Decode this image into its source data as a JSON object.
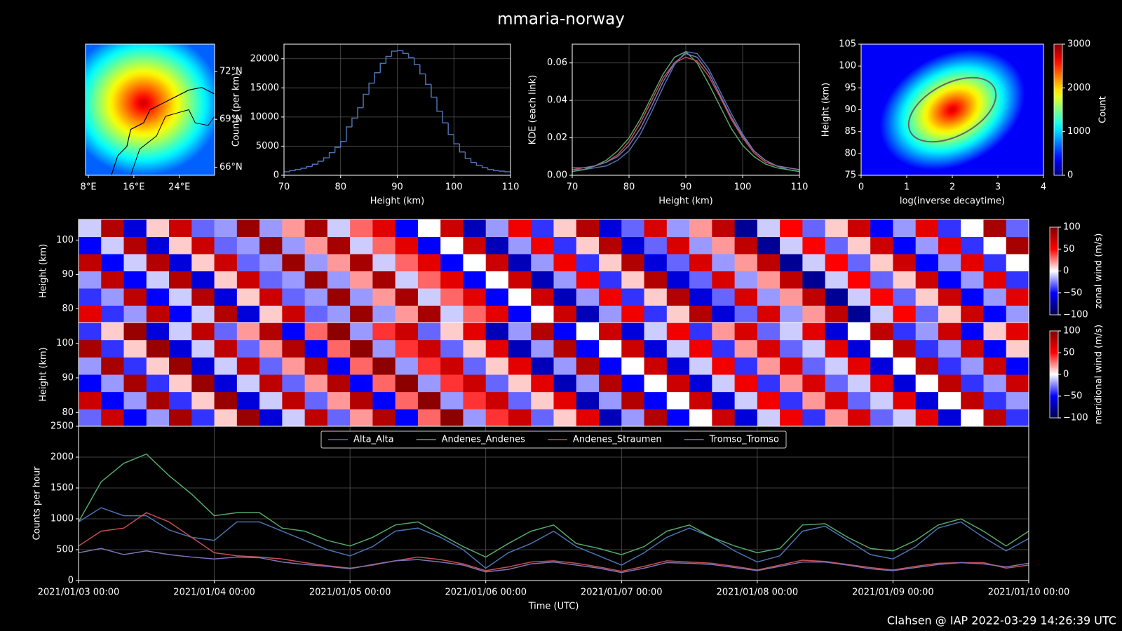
{
  "title": "mmaria-norway",
  "footer": "Clahsen @ IAP 2022-03-29 14:26:39 UTC",
  "chart_data": [
    {
      "type": "map",
      "cmap": "jet",
      "xlim": [
        7.5,
        30.2
      ],
      "ylim": [
        65.5,
        73.7
      ],
      "xticks": [
        {
          "value": 8,
          "label": "8°E"
        },
        {
          "value": 16,
          "label": "16°E"
        },
        {
          "value": 24,
          "label": "24°E"
        }
      ],
      "yticks": [
        {
          "value": 72,
          "label": "72°N"
        },
        {
          "value": 69,
          "label": "69°N"
        },
        {
          "value": 66,
          "label": "66°N"
        }
      ],
      "ytick_side": "right"
    },
    {
      "type": "histogram",
      "color": "#4c72b0",
      "grid": true,
      "xlabel": "Height (km)",
      "ylabel": "Counts (per km)",
      "bins": [
        70,
        71,
        72,
        73,
        74,
        75,
        76,
        77,
        78,
        79,
        80,
        81,
        82,
        83,
        84,
        85,
        86,
        87,
        88,
        89,
        90,
        91,
        92,
        93,
        94,
        95,
        96,
        97,
        98,
        99,
        100,
        101,
        102,
        103,
        104,
        105,
        106,
        107,
        108,
        109,
        110
      ],
      "values": [
        600,
        800,
        1000,
        1200,
        1500,
        1900,
        2400,
        3000,
        3900,
        4800,
        5800,
        8300,
        9800,
        11600,
        13900,
        15800,
        17600,
        19200,
        20400,
        21300,
        21400,
        20900,
        20200,
        19000,
        17400,
        15600,
        13400,
        11000,
        9000,
        7000,
        5400,
        4000,
        2900,
        2200,
        1700,
        1300,
        1000,
        800,
        700,
        600
      ],
      "xlim": [
        70,
        110
      ],
      "xticks": [
        70,
        80,
        90,
        100,
        110
      ],
      "ylim": [
        0,
        22500
      ],
      "yticks": [
        0,
        5000,
        10000,
        15000,
        20000
      ]
    },
    {
      "type": "line",
      "grid": true,
      "xlabel": "Height (km)",
      "ylabel": "KDE (each link)",
      "x": [
        70,
        72,
        74,
        76,
        78,
        80,
        82,
        84,
        86,
        88,
        90,
        92,
        94,
        96,
        98,
        100,
        102,
        104,
        106,
        108,
        110
      ],
      "series": [
        {
          "color": "#4c72b0",
          "values": [
            0.003,
            0.003,
            0.004,
            0.005,
            0.008,
            0.013,
            0.022,
            0.034,
            0.047,
            0.059,
            0.066,
            0.065,
            0.057,
            0.045,
            0.033,
            0.022,
            0.013,
            0.008,
            0.005,
            0.003,
            0.002
          ]
        },
        {
          "color": "#55a868",
          "values": [
            0.002,
            0.003,
            0.005,
            0.008,
            0.013,
            0.02,
            0.03,
            0.042,
            0.054,
            0.063,
            0.066,
            0.06,
            0.049,
            0.037,
            0.025,
            0.016,
            0.01,
            0.006,
            0.004,
            0.003,
            0.002
          ]
        },
        {
          "color": "#c44e52",
          "values": [
            0.003,
            0.004,
            0.005,
            0.007,
            0.011,
            0.018,
            0.028,
            0.04,
            0.052,
            0.06,
            0.063,
            0.061,
            0.053,
            0.042,
            0.03,
            0.02,
            0.012,
            0.007,
            0.005,
            0.004,
            0.003
          ]
        },
        {
          "color": "#8172b2",
          "values": [
            0.004,
            0.004,
            0.005,
            0.007,
            0.01,
            0.016,
            0.025,
            0.037,
            0.05,
            0.06,
            0.065,
            0.063,
            0.055,
            0.043,
            0.031,
            0.021,
            0.013,
            0.008,
            0.005,
            0.004,
            0.003
          ]
        }
      ],
      "xlim": [
        70,
        110
      ],
      "xticks": [
        70,
        80,
        90,
        100,
        110
      ],
      "ylim": [
        0,
        0.07
      ],
      "yticks": [
        {
          "value": 0,
          "label": "0.00"
        },
        0.02,
        0.04,
        0.06
      ]
    },
    {
      "type": "hist2d",
      "cmap": "jet",
      "xlabel": "log(inverse decaytime)",
      "ylabel": "Height (km)",
      "xlim": [
        0,
        4
      ],
      "xticks": [
        0,
        1,
        2,
        3,
        4
      ],
      "ylim": [
        75,
        105
      ],
      "yticks": [
        75,
        80,
        85,
        90,
        95,
        100,
        105
      ],
      "colorbar": {
        "label": "Count",
        "clim": [
          0,
          3000
        ],
        "ticks": [
          0,
          1000,
          2000,
          3000
        ]
      }
    },
    {
      "type": "heatmap",
      "cmap": "seismic",
      "ylabel": "Height (km)",
      "xlim": [
        "2021/01/03 00:00",
        "2021/01/10 00:00"
      ],
      "ylim": [
        76,
        106
      ],
      "yticks": [
        80,
        90,
        100
      ],
      "y": [
        78.5,
        83.5,
        88.5,
        93.5,
        98.5,
        103.5
      ],
      "z": [
        [
          60,
          -40,
          -20,
          75,
          -50,
          -10,
          80,
          -60,
          10,
          70,
          -30,
          -20,
          90,
          -20,
          20,
          85,
          -10,
          30,
          60,
          -50,
          0,
          70,
          -70,
          -20,
          55,
          -40,
          10,
          80,
          -60,
          -30,
          65,
          -20,
          20,
          75,
          -80,
          -10,
          50,
          -30,
          10,
          70,
          -50,
          -20
        ],
        [
          -40,
          -20,
          75,
          -50,
          -10,
          80,
          -60,
          10,
          70,
          -30,
          -20,
          90,
          -20,
          20,
          85,
          -10,
          30,
          60,
          -50,
          0,
          70,
          -70,
          -20,
          55,
          -40,
          10,
          80,
          -60,
          -30,
          65,
          -20,
          20,
          75,
          -80,
          -10,
          50,
          -30,
          10,
          70,
          -50,
          -20,
          60
        ],
        [
          -20,
          75,
          -50,
          -10,
          80,
          -60,
          10,
          70,
          -30,
          -20,
          90,
          -20,
          20,
          85,
          -10,
          30,
          60,
          -50,
          0,
          70,
          -70,
          -20,
          55,
          -40,
          10,
          80,
          -60,
          -30,
          65,
          -20,
          20,
          75,
          -80,
          -10,
          50,
          -30,
          10,
          70,
          -50,
          -20,
          60,
          -40
        ],
        [
          75,
          -50,
          -10,
          80,
          -60,
          10,
          70,
          -30,
          -20,
          90,
          -20,
          20,
          85,
          -10,
          30,
          60,
          -50,
          0,
          70,
          -70,
          -20,
          55,
          -40,
          10,
          80,
          -60,
          -30,
          65,
          -20,
          20,
          75,
          -80,
          -10,
          50,
          -30,
          10,
          70,
          -50,
          -20,
          60,
          -40,
          0
        ],
        [
          -50,
          -10,
          80,
          -60,
          10,
          70,
          -30,
          -20,
          90,
          -20,
          20,
          85,
          -10,
          30,
          60,
          -50,
          0,
          70,
          -70,
          -20,
          55,
          -40,
          10,
          80,
          -60,
          -30,
          65,
          -20,
          20,
          75,
          -80,
          -10,
          50,
          -30,
          10,
          70,
          -50,
          -20,
          60,
          -40,
          0,
          85
        ],
        [
          -10,
          80,
          -60,
          10,
          70,
          -30,
          -20,
          90,
          -20,
          20,
          85,
          -10,
          30,
          60,
          -50,
          0,
          70,
          -70,
          -20,
          55,
          -40,
          10,
          80,
          -60,
          -30,
          65,
          -20,
          20,
          75,
          -80,
          -10,
          50,
          -30,
          10,
          70,
          -50,
          -20,
          60,
          -40,
          0,
          85,
          -30
        ]
      ],
      "colorbar": {
        "label": "zonal wind (m/s)",
        "clim": [
          -100,
          100
        ],
        "ticks": [
          {
            "value": -100,
            "label": "−100"
          },
          {
            "value": -50,
            "label": "−50"
          },
          0,
          50,
          100
        ]
      }
    },
    {
      "type": "heatmap",
      "cmap": "seismic",
      "ylabel": "Height (km)",
      "xlim": [
        "2021/01/03 00:00",
        "2021/01/10 00:00"
      ],
      "ylim": [
        76,
        106
      ],
      "yticks": [
        80,
        90,
        100
      ],
      "y": [
        78.5,
        83.5,
        88.5,
        93.5,
        98.5,
        103.5
      ],
      "z": [
        [
          -30,
          70,
          -50,
          -20,
          85,
          -40,
          10,
          90,
          -60,
          -10,
          75,
          -30,
          20,
          80,
          -50,
          30,
          95,
          -20,
          40,
          70,
          -30,
          10,
          60,
          -70,
          -20,
          80,
          -50,
          0,
          70,
          -60,
          -10,
          55,
          -40,
          20,
          65,
          -30,
          -10,
          60,
          -60,
          0,
          75,
          -40
        ],
        [
          70,
          -50,
          -20,
          85,
          -40,
          10,
          90,
          -60,
          -10,
          75,
          -30,
          20,
          80,
          -50,
          30,
          95,
          -20,
          40,
          70,
          -30,
          10,
          60,
          -70,
          -20,
          80,
          -50,
          0,
          70,
          -60,
          -10,
          55,
          -40,
          20,
          65,
          -30,
          -10,
          60,
          -60,
          0,
          75,
          -40,
          -20
        ],
        [
          -50,
          -20,
          85,
          -40,
          10,
          90,
          -60,
          -10,
          75,
          -30,
          20,
          80,
          -50,
          30,
          95,
          -20,
          40,
          70,
          -30,
          10,
          60,
          -70,
          -20,
          80,
          -50,
          0,
          70,
          -60,
          -10,
          55,
          -40,
          20,
          65,
          -30,
          -10,
          60,
          -60,
          0,
          75,
          -40,
          -20,
          70
        ],
        [
          -20,
          85,
          -40,
          10,
          90,
          -60,
          -10,
          75,
          -30,
          20,
          80,
          -50,
          30,
          95,
          -20,
          40,
          70,
          -30,
          10,
          60,
          -70,
          -20,
          80,
          -50,
          0,
          70,
          -60,
          -10,
          55,
          -40,
          20,
          65,
          -30,
          -10,
          60,
          -60,
          0,
          75,
          -40,
          -20,
          70,
          -50
        ],
        [
          85,
          -40,
          10,
          90,
          -60,
          -10,
          75,
          -30,
          20,
          80,
          -50,
          30,
          95,
          -20,
          40,
          70,
          -30,
          10,
          60,
          -70,
          -20,
          80,
          -50,
          0,
          70,
          -60,
          -10,
          55,
          -40,
          20,
          65,
          -30,
          -10,
          60,
          -60,
          0,
          75,
          -40,
          -20,
          70,
          -50,
          10
        ],
        [
          -40,
          10,
          90,
          -60,
          -10,
          75,
          -30,
          20,
          80,
          -50,
          30,
          95,
          -20,
          40,
          70,
          -30,
          10,
          60,
          -70,
          -20,
          80,
          -50,
          0,
          70,
          -60,
          -10,
          55,
          -40,
          20,
          65,
          -30,
          -10,
          60,
          -60,
          0,
          75,
          -40,
          -20,
          70,
          -50,
          10,
          60
        ]
      ],
      "colorbar": {
        "label": "meridional wind (m/s)",
        "clim": [
          -100,
          100
        ],
        "ticks": [
          {
            "value": -100,
            "label": "−100"
          },
          {
            "value": -50,
            "label": "−50"
          },
          0,
          50,
          100
        ]
      }
    },
    {
      "type": "line",
      "grid": true,
      "legend": "upper center",
      "xlabel": "Time (UTC)",
      "ylabel": "Counts per hour",
      "x": [
        "2021/01/03 00:00",
        "2021/01/03 04:00",
        "2021/01/03 08:00",
        "2021/01/03 12:00",
        "2021/01/03 16:00",
        "2021/01/03 20:00",
        "2021/01/04 00:00",
        "2021/01/04 04:00",
        "2021/01/04 08:00",
        "2021/01/04 12:00",
        "2021/01/04 16:00",
        "2021/01/04 20:00",
        "2021/01/05 00:00",
        "2021/01/05 04:00",
        "2021/01/05 08:00",
        "2021/01/05 12:00",
        "2021/01/05 16:00",
        "2021/01/05 20:00",
        "2021/01/06 00:00",
        "2021/01/06 04:00",
        "2021/01/06 08:00",
        "2021/01/06 12:00",
        "2021/01/06 16:00",
        "2021/01/06 20:00",
        "2021/01/07 00:00",
        "2021/01/07 04:00",
        "2021/01/07 08:00",
        "2021/01/07 12:00",
        "2021/01/07 16:00",
        "2021/01/07 20:00",
        "2021/01/08 00:00",
        "2021/01/08 04:00",
        "2021/01/08 08:00",
        "2021/01/08 12:00",
        "2021/01/08 16:00",
        "2021/01/08 20:00",
        "2021/01/09 00:00",
        "2021/01/09 04:00",
        "2021/01/09 08:00",
        "2021/01/09 12:00",
        "2021/01/09 16:00",
        "2021/01/09 20:00",
        "2021/01/10 00:00"
      ],
      "series": [
        {
          "name": "Alta_Alta",
          "color": "#4c72b0",
          "values": [
            950,
            1180,
            1050,
            1050,
            820,
            700,
            650,
            950,
            950,
            800,
            650,
            500,
            400,
            550,
            800,
            850,
            700,
            500,
            200,
            450,
            600,
            800,
            550,
            400,
            250,
            450,
            700,
            850,
            700,
            480,
            300,
            400,
            800,
            880,
            650,
            420,
            350,
            550,
            850,
            950,
            700,
            480,
            680
          ]
        },
        {
          "name": "Andenes_Andenes",
          "color": "#55a868",
          "values": [
            950,
            1600,
            1900,
            2050,
            1700,
            1400,
            1050,
            1100,
            1100,
            850,
            800,
            650,
            560,
            700,
            900,
            950,
            750,
            550,
            380,
            600,
            800,
            900,
            600,
            520,
            420,
            550,
            800,
            900,
            700,
            560,
            450,
            520,
            900,
            920,
            700,
            520,
            480,
            650,
            900,
            1000,
            800,
            560,
            800
          ]
        },
        {
          "name": "Andenes_Straumen",
          "color": "#c44e52",
          "values": [
            560,
            800,
            850,
            1100,
            950,
            700,
            450,
            400,
            380,
            350,
            290,
            240,
            200,
            250,
            320,
            380,
            340,
            270,
            160,
            220,
            300,
            320,
            280,
            220,
            150,
            230,
            320,
            300,
            280,
            230,
            170,
            250,
            330,
            310,
            260,
            210,
            170,
            230,
            280,
            290,
            290,
            200,
            250
          ]
        },
        {
          "name": "Tromso_Tromso",
          "color": "#8172b2",
          "values": [
            450,
            520,
            420,
            480,
            420,
            380,
            350,
            380,
            370,
            300,
            260,
            230,
            190,
            260,
            320,
            340,
            300,
            250,
            140,
            180,
            270,
            300,
            250,
            200,
            130,
            200,
            290,
            280,
            260,
            210,
            160,
            230,
            300,
            300,
            250,
            190,
            160,
            210,
            260,
            290,
            270,
            220,
            280
          ]
        }
      ],
      "xlim": [
        "2021/01/03 00:00",
        "2021/01/10 00:00"
      ],
      "xticks": [
        "2021/01/03 00:00",
        "2021/01/04 00:00",
        "2021/01/05 00:00",
        "2021/01/06 00:00",
        "2021/01/07 00:00",
        "2021/01/08 00:00",
        "2021/01/09 00:00",
        "2021/01/10 00:00"
      ],
      "ylim": [
        0,
        2500
      ],
      "yticks": [
        0,
        500,
        1000,
        1500,
        2000,
        2500
      ]
    }
  ]
}
